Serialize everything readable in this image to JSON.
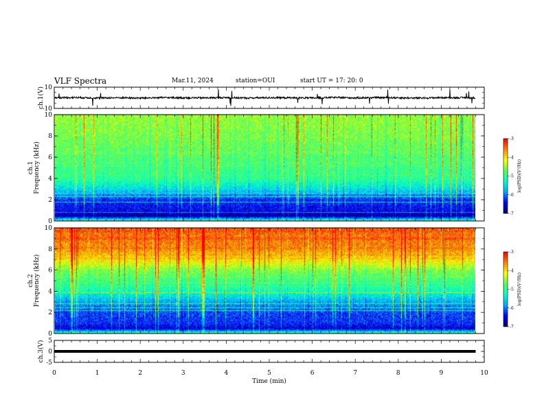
{
  "header": {
    "title": "VLF Spectra",
    "date": "Mar.11, 2024",
    "station": "station=OUI",
    "start": "start  UT =   17: 20: 0"
  },
  "colors": {
    "spectrum_scale": [
      "#000066",
      "#0000ff",
      "#00aaff",
      "#00ffcc",
      "#55ff55",
      "#ffff00",
      "#ff8800",
      "#ff0000",
      "#ffffff"
    ]
  },
  "chart_data": [
    {
      "type": "line",
      "name": "ch1-waveform",
      "ylabel": "ch.1(V)",
      "ylim": [
        -10,
        10
      ],
      "y_ticks": [
        "10",
        "-10"
      ],
      "x": [
        0,
        0.5,
        1,
        1.5,
        2,
        2.5,
        3,
        3.5,
        4,
        4.5,
        5,
        5.5,
        6,
        6.5,
        7,
        7.5,
        8,
        8.5,
        9,
        9.5,
        9.8
      ],
      "y": [
        0,
        0.3,
        -0.2,
        0.1,
        -0.3,
        0.2,
        0,
        -0.1,
        0.2,
        -0.2,
        0.1,
        0,
        -0.2,
        0.3,
        -0.1,
        0.2,
        0,
        -0.3,
        0.2,
        0.1,
        0
      ],
      "xlim": [
        0,
        10
      ]
    },
    {
      "type": "heatmap",
      "name": "ch1-spectrogram",
      "ylabel": "ch.1 Frequency (kHz)",
      "ylim": [
        0,
        10
      ],
      "y_ticks": [
        "0",
        "2",
        "4",
        "6",
        "8",
        "10"
      ],
      "xlim": [
        0,
        10
      ],
      "colorbar": {
        "label": "log(PSD)(V²/Hz)",
        "ticks": [
          "-3",
          "-4",
          "-5",
          "-6",
          "-7"
        ],
        "range": [
          -7,
          -3
        ]
      },
      "level_by_freq_khz": {
        "freq": [
          0,
          0.5,
          1,
          2,
          3,
          4,
          6,
          8,
          10
        ],
        "log_psd": [
          -4.8,
          -6.8,
          -6.5,
          -6.3,
          -5.5,
          -5.0,
          -4.8,
          -4.6,
          -4.5
        ]
      }
    },
    {
      "type": "heatmap",
      "name": "ch2-spectrogram",
      "ylabel": "ch.2 Frequency (kHz)",
      "ylim": [
        0,
        10
      ],
      "y_ticks": [
        "0",
        "2",
        "4",
        "6",
        "8",
        "10"
      ],
      "xlim": [
        0,
        10
      ],
      "colorbar": {
        "label": "log(PSD)(V²/Hz)",
        "ticks": [
          "-3",
          "-4",
          "-5",
          "-6",
          "-7"
        ],
        "range": [
          -7,
          -3
        ]
      },
      "level_by_freq_khz": {
        "freq": [
          0,
          0.5,
          1,
          2,
          3,
          4,
          5,
          6,
          7,
          8,
          10
        ],
        "log_psd": [
          -4.8,
          -6.6,
          -6.3,
          -6.2,
          -5.8,
          -5.2,
          -4.9,
          -4.6,
          -4.0,
          -3.6,
          -3.4
        ]
      }
    },
    {
      "type": "line",
      "name": "ch3-waveform",
      "ylabel": "ch.3(V)",
      "ylim": [
        -5,
        5
      ],
      "y_ticks": [
        "5",
        "0",
        "-5"
      ],
      "x": [
        0,
        9.8
      ],
      "y": [
        0,
        0
      ],
      "xlim": [
        0,
        10
      ],
      "xlabel": "Time  (min)",
      "x_ticks": [
        "0",
        "1",
        "2",
        "3",
        "4",
        "5",
        "6",
        "7",
        "8",
        "9",
        "10"
      ]
    }
  ]
}
